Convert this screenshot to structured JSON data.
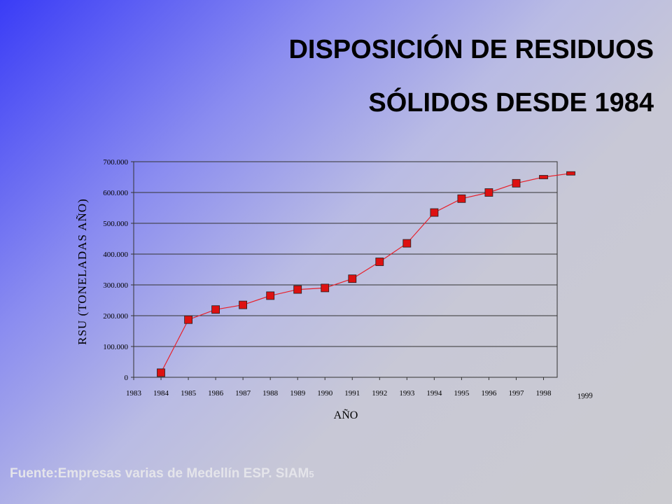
{
  "slide": {
    "title_line1": "DISPOSICIÓN DE RESIDUOS",
    "title_line2": "SÓLIDOS DESDE 1984",
    "footer_source": "Fuente:Empresas varias de Medellín ESP.  SIAM",
    "footer_page": "5"
  },
  "chart_data": {
    "type": "line",
    "title": "",
    "xlabel": "AÑO",
    "ylabel": "RSU (TONELADAS AÑO)",
    "x_ticks": [
      "1983",
      "1984",
      "1985",
      "1986",
      "1987",
      "1988",
      "1989",
      "1990",
      "1991",
      "1992",
      "1993",
      "1994",
      "1995",
      "1996",
      "1997",
      "1998"
    ],
    "extra_x_label": "1999",
    "y_ticks": [
      "0",
      "100.000",
      "200.000",
      "300.000",
      "400.000",
      "500.000",
      "600.000",
      "700.000"
    ],
    "xlim": [
      1983,
      1998.5
    ],
    "ylim": [
      0,
      700000
    ],
    "grid": true,
    "series_color": "#e8202a",
    "marker_color": "#dd1111",
    "series": [
      {
        "x": [
          1984,
          1985,
          1986,
          1987,
          1988,
          1989,
          1990,
          1991,
          1992,
          1993,
          1994,
          1995,
          1996,
          1997,
          1998,
          1999
        ],
        "values": [
          15000,
          187000,
          220000,
          235000,
          265000,
          285000,
          290000,
          320000,
          375000,
          435000,
          535000,
          580000,
          600000,
          630000,
          650000,
          662000
        ]
      }
    ]
  }
}
